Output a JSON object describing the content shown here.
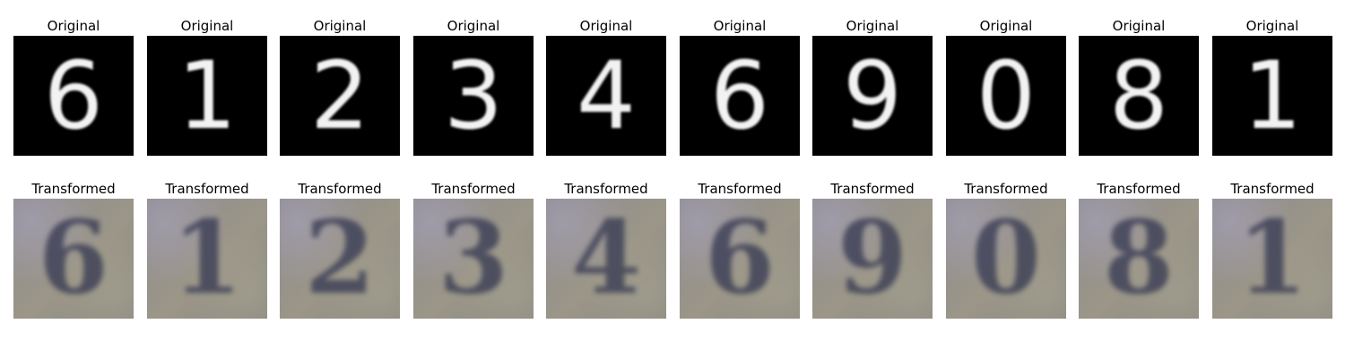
{
  "labels": {
    "original": "Original",
    "transformed": "Transformed"
  },
  "columns": [
    {
      "digit": "6"
    },
    {
      "digit": "1"
    },
    {
      "digit": "2"
    },
    {
      "digit": "3"
    },
    {
      "digit": "4"
    },
    {
      "digit": "6"
    },
    {
      "digit": "9"
    },
    {
      "digit": "0"
    },
    {
      "digit": "8"
    },
    {
      "digit": "1"
    }
  ],
  "colors": {
    "original_bg": "#000000",
    "digit_white": "#f2f2f2",
    "transformed_stroke": "#3a3d55"
  }
}
